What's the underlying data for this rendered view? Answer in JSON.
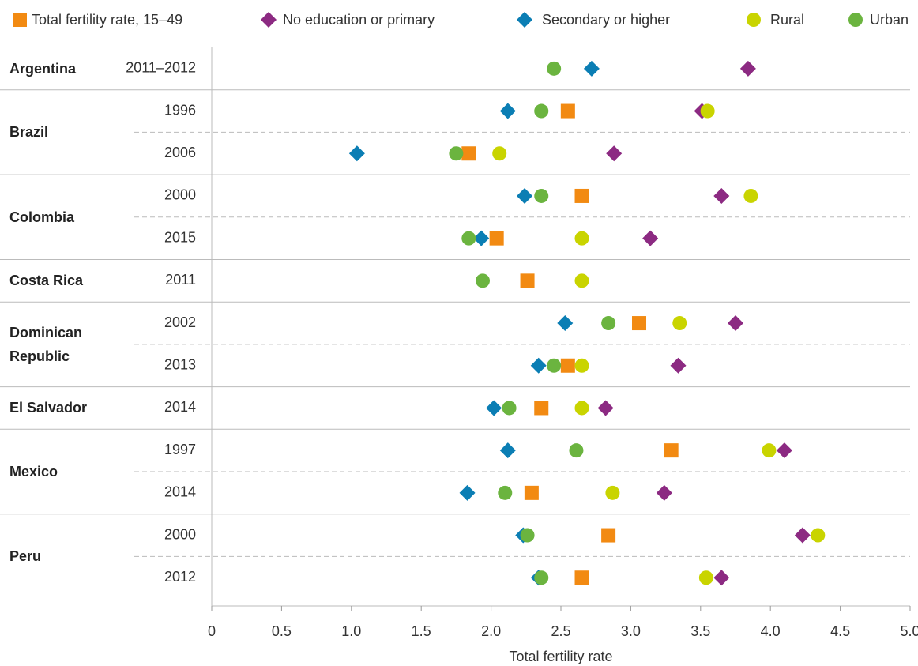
{
  "chart_data": {
    "type": "dot",
    "x_label": "Total fertility rate",
    "groups": [
      {
        "name": "Argentina",
        "years": [
          "2011–2012"
        ]
      },
      {
        "name": "Brazil",
        "years": [
          "1996",
          "2006"
        ]
      },
      {
        "name": "Colombia",
        "years": [
          "2000",
          "2015"
        ]
      },
      {
        "name": "Costa Rica",
        "years": [
          "2011"
        ]
      },
      {
        "name": "Dominican Republic",
        "years": [
          "2002",
          "2013"
        ]
      },
      {
        "name": "El Salvador",
        "years": [
          "2014"
        ]
      },
      {
        "name": "Mexico",
        "years": [
          "1997",
          "2014"
        ]
      },
      {
        "name": "Peru",
        "years": [
          "2000",
          "2012"
        ]
      }
    ],
    "series": [
      {
        "name": "Secondary or higher",
        "color": "#0b7eb4",
        "marker": "diamond",
        "values": [
          2.72,
          2.12,
          1.04,
          2.24,
          1.93,
          null,
          2.53,
          2.34,
          2.02,
          2.12,
          1.83,
          2.23,
          2.34
        ]
      },
      {
        "name": "No education or primary",
        "color": "#8c2a82",
        "marker": "diamond",
        "values": [
          3.84,
          3.51,
          2.88,
          3.65,
          3.14,
          null,
          3.75,
          3.34,
          2.82,
          4.1,
          3.24,
          4.23,
          3.65
        ]
      },
      {
        "name": "Total fertility rate, 15–49",
        "color": "#f28a12",
        "marker": "square",
        "values": [
          null,
          2.55,
          1.84,
          2.65,
          2.04,
          2.26,
          3.06,
          2.55,
          2.36,
          3.29,
          2.29,
          2.84,
          2.65
        ]
      },
      {
        "name": "Rural",
        "color": "#c9d400",
        "marker": "circle",
        "values": [
          null,
          3.55,
          2.06,
          3.86,
          2.65,
          2.65,
          3.35,
          2.65,
          2.65,
          3.99,
          2.87,
          4.34,
          3.54
        ]
      },
      {
        "name": "Urban",
        "color": "#6bb43f",
        "marker": "circle",
        "values": [
          2.45,
          2.36,
          1.75,
          2.36,
          1.84,
          1.94,
          2.84,
          2.45,
          2.13,
          2.61,
          2.1,
          2.26,
          2.36
        ]
      }
    ],
    "xlim": [
      0,
      5
    ],
    "xticks": [
      0,
      0.5,
      {
        "value": 1,
        "label": "1.0"
      },
      1.5,
      {
        "value": 2,
        "label": "2.0"
      },
      2.5,
      {
        "value": 3,
        "label": "3.0"
      },
      3.5,
      {
        "value": 4,
        "label": "4.0"
      },
      4.5,
      {
        "value": 5,
        "label": "5.0"
      }
    ]
  }
}
